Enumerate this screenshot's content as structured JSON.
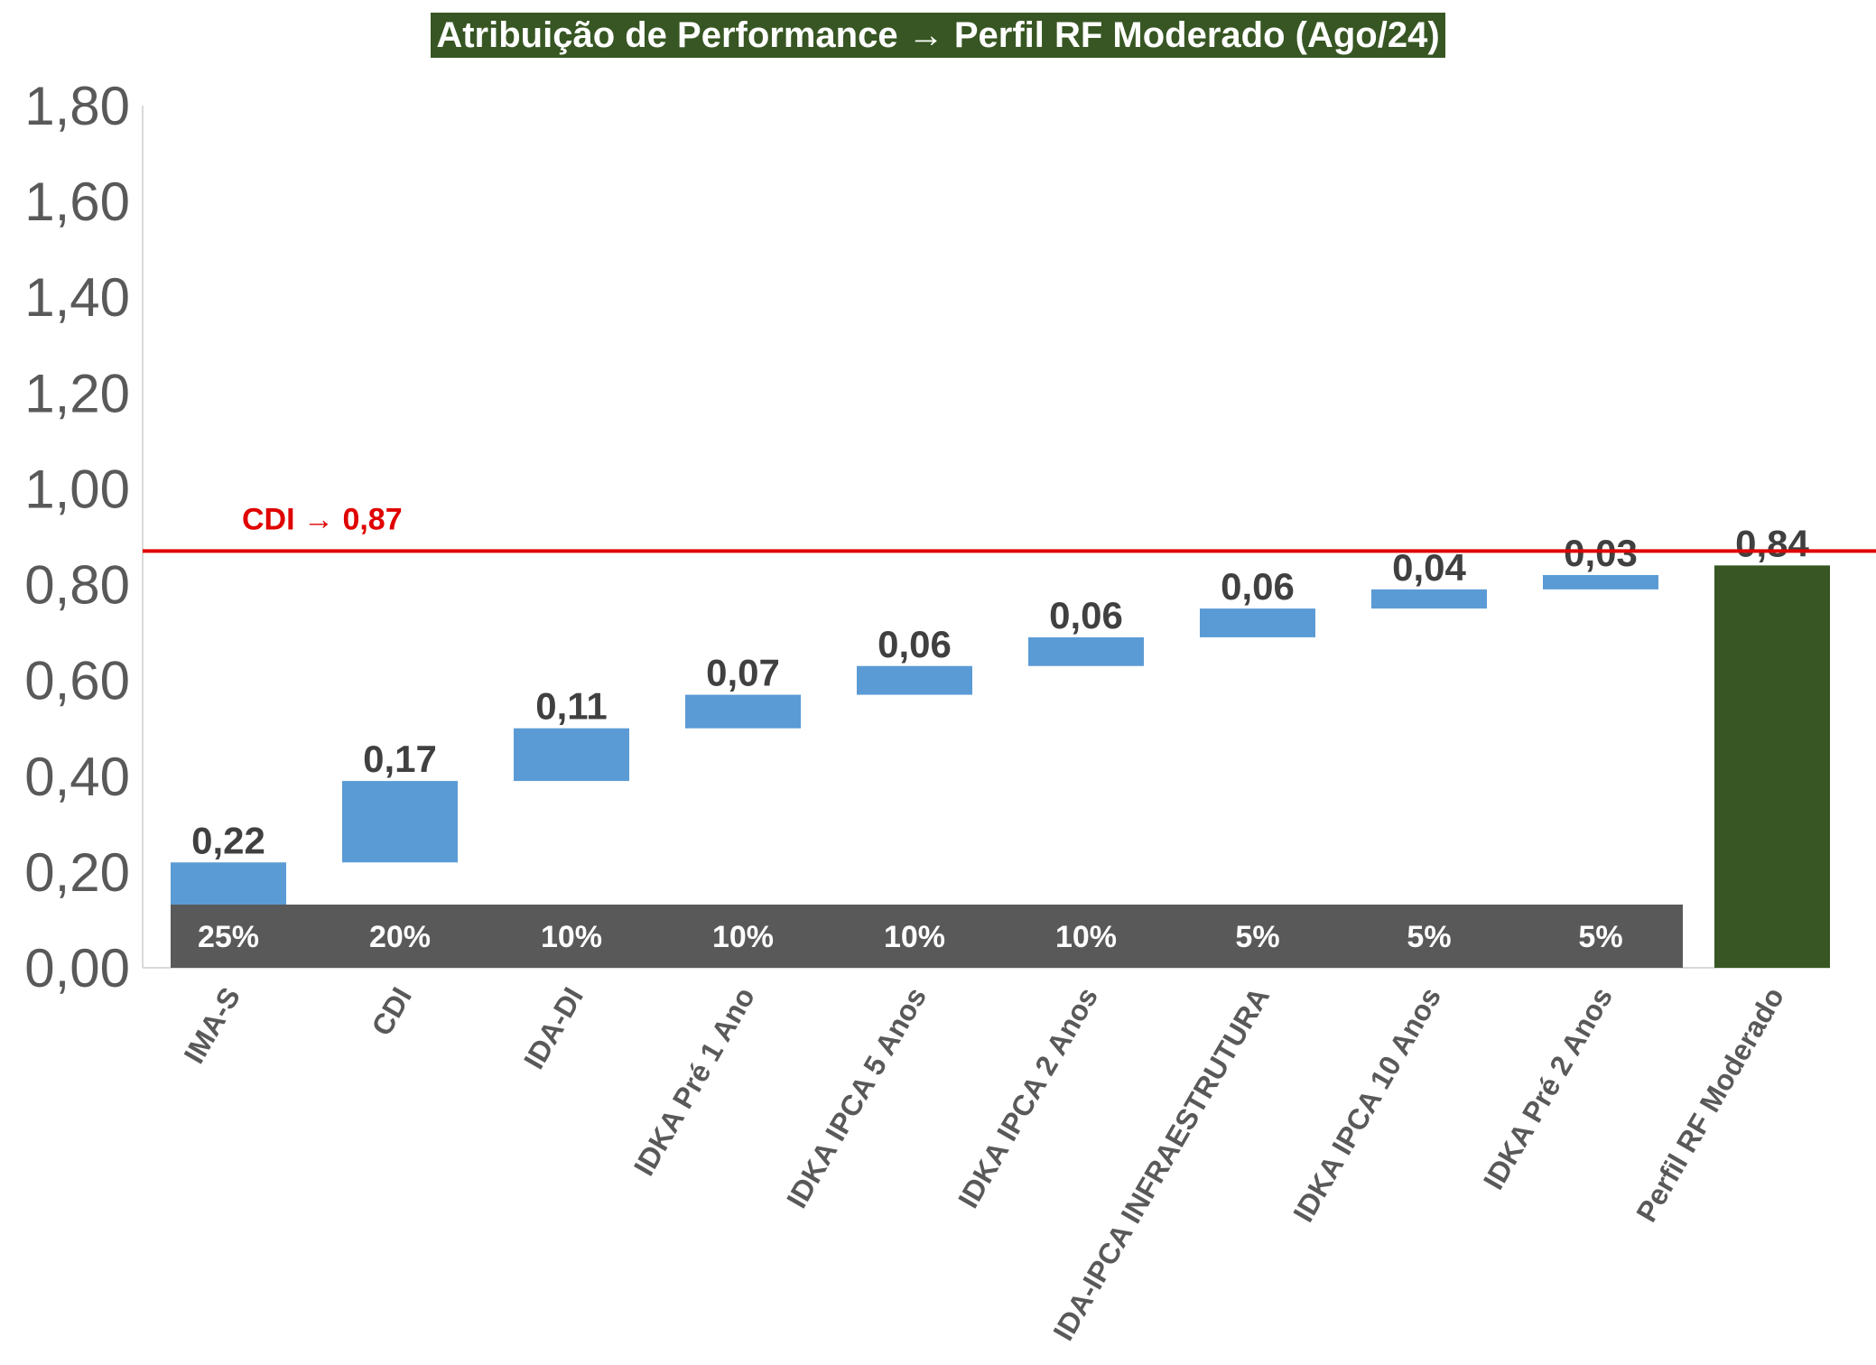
{
  "chart_data": {
    "type": "bar",
    "subtype": "waterfall",
    "title": "Atribuição de Performance → Perfil RF Moderado (Ago/24)",
    "ylim": [
      0,
      1.8
    ],
    "yticks": [
      "0,00",
      "0,20",
      "0,40",
      "0,60",
      "0,80",
      "1,00",
      "1,20",
      "1,40",
      "1,60",
      "1,80"
    ],
    "categories": [
      "IMA-S",
      "CDI",
      "IDA-DI",
      "IDKA Pré 1 Ano",
      "IDKA IPCA 5 Anos",
      "IDKA IPCA 2 Anos",
      "IDA-IPCA INFRAESTRUTURA",
      "IDKA IPCA 10 Anos",
      "IDKA Pré 2 Anos",
      "Perfil RF Moderado"
    ],
    "values": [
      0.22,
      0.17,
      0.11,
      0.07,
      0.06,
      0.06,
      0.06,
      0.04,
      0.03,
      0.84
    ],
    "value_labels": [
      "0,22",
      "0,17",
      "0,11",
      "0,07",
      "0,06",
      "0,06",
      "0,06",
      "0,04",
      "0,03",
      "0,84"
    ],
    "weights": [
      "25%",
      "20%",
      "10%",
      "10%",
      "10%",
      "10%",
      "5%",
      "5%",
      "5%"
    ],
    "total_index": 9,
    "reference_line": {
      "label": "CDI → 0,87",
      "value": 0.87
    },
    "grid": false,
    "legend": "none",
    "colors": {
      "increment": "#5b9bd5",
      "total": "#375623",
      "weight_band": "#595959",
      "reference": "#e00000",
      "title_bg": "#375623",
      "axis": "#d9d9d9"
    }
  }
}
